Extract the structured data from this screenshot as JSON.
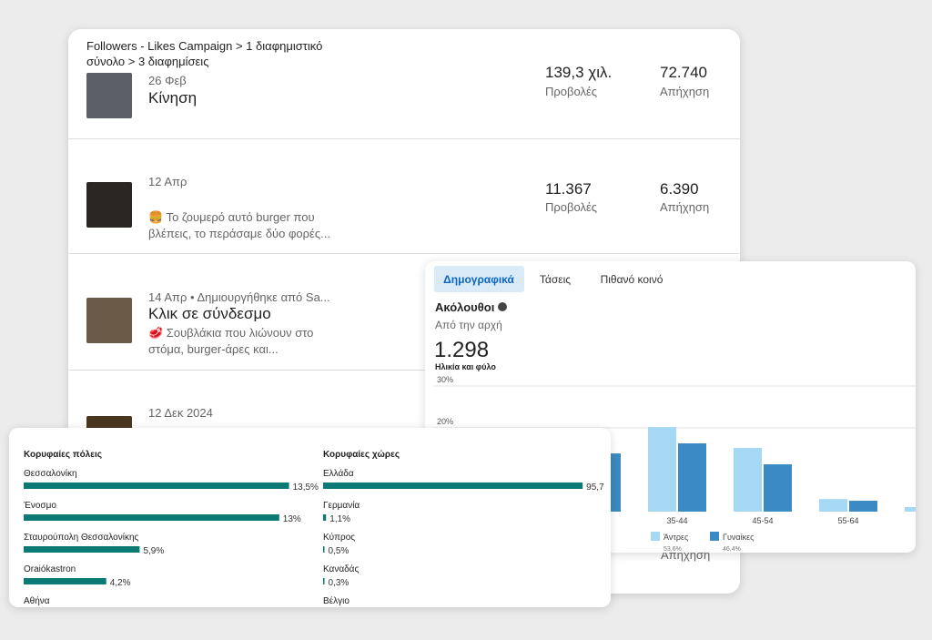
{
  "campaign": {
    "breadcrumb": "Followers - Likes Campaign > 1 διαφημιστικό σύνολο > 3 διαφημίσεις",
    "posts": [
      {
        "date": "26 Φεβ",
        "title": "Κίνηση",
        "views": "139,3 χιλ.",
        "views_label": "Προβολές",
        "reach": "72.740",
        "reach_label": "Απήχηση"
      },
      {
        "date": "12 Απρ",
        "text": "🍔 Το ζουμερό αυτό burger που βλέπεις, το περάσαμε δύο φορές...",
        "views": "11.367",
        "views_label": "Προβολές",
        "reach": "6.390",
        "reach_label": "Απήχηση"
      },
      {
        "date": "14 Απρ • Δημιουργήθηκε από Sa...",
        "title": "Κλικ σε σύνδεσμο",
        "text": "🥩 Σουβλάκια που λιώνουν στο στόμα, burger-άρες και..."
      },
      {
        "date": "12 Δεκ 2024",
        "reach_label": "Απήχηση"
      }
    ]
  },
  "demographics": {
    "tabs": [
      "Δημογραφικά",
      "Τάσεις",
      "Πιθανό κοινό"
    ],
    "followers_title": "Ακόλουθοι",
    "period": "Από την αρχή",
    "followers": "1.298",
    "section": "Ηλικία και φύλο",
    "chart_data": {
      "type": "bar",
      "ylim": [
        0,
        30
      ],
      "yticks": [
        {
          "value": 20,
          "label": "20%"
        },
        {
          "value": 30,
          "label": "30%"
        }
      ],
      "grid": true,
      "categories": [
        null,
        "35-44",
        "45-54",
        "55-64",
        null
      ],
      "series": [
        {
          "name": "Άντρες",
          "share": "53,6%",
          "color": "#a5d8f3",
          "values": [
            null,
            20.2,
            15.2,
            3.0,
            1.1
          ]
        },
        {
          "name": "Γυναίκες",
          "share": "46,4%",
          "color": "#3b8ac4",
          "values": [
            13.9,
            16.3,
            11.3,
            2.6,
            null
          ]
        }
      ]
    }
  },
  "locations": {
    "cities_title": "Κορυφαίες πόλεις",
    "countries_title": "Κορυφαίες χώρες",
    "color": "#0b7a75",
    "cities": [
      {
        "name": "Θεσσαλονίκη",
        "value": 13.5,
        "label": "13,5%"
      },
      {
        "name": "Ένοσμο",
        "value": 13,
        "label": "13%"
      },
      {
        "name": "Σταυρούπολη Θεσσαλονίκης",
        "value": 5.9,
        "label": "5,9%"
      },
      {
        "name": "Oraiókastron",
        "value": 4.2,
        "label": "4,2%"
      },
      {
        "name": "Αθήνα"
      }
    ],
    "countries": [
      {
        "name": "Ελλάδα",
        "value": 95.7,
        "label": "95,7"
      },
      {
        "name": "Γερμανία",
        "value": 1.1,
        "label": "1,1%"
      },
      {
        "name": "Κύπρος",
        "value": 0.5,
        "label": "0,5%"
      },
      {
        "name": "Καναδάς",
        "value": 0.3,
        "label": "0,3%"
      },
      {
        "name": "Βέλγιο"
      }
    ]
  }
}
